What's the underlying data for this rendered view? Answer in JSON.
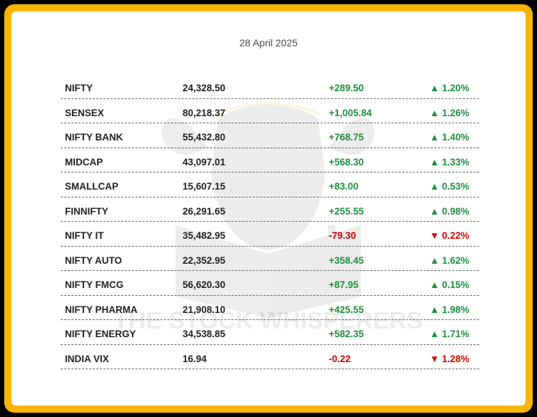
{
  "date": "28 April 2025",
  "watermark_text": "THE STOCK WHISPERERS",
  "colors": {
    "up": "#1e8e3e",
    "down": "#d40000",
    "frame": "#F7B500"
  },
  "rows": [
    {
      "name": "NIFTY",
      "value": "24,328.50",
      "change": "+289.50",
      "pct": "▲ 1.20%",
      "dir": "up"
    },
    {
      "name": "SENSEX",
      "value": "80,218.37",
      "change": "+1,005.84",
      "pct": "▲ 1.26%",
      "dir": "up"
    },
    {
      "name": "NIFTY BANK",
      "value": "55,432.80",
      "change": "+768.75",
      "pct": "▲ 1.40%",
      "dir": "up"
    },
    {
      "name": "MIDCAP",
      "value": "43,097.01",
      "change": "+568.30",
      "pct": "▲ 1.33%",
      "dir": "up"
    },
    {
      "name": "SMALLCAP",
      "value": "15,607.15",
      "change": "+83.00",
      "pct": "▲ 0.53%",
      "dir": "up"
    },
    {
      "name": "FINNIFTY",
      "value": "26,291.65",
      "change": "+255.55",
      "pct": "▲ 0.98%",
      "dir": "up"
    },
    {
      "name": "NIFTY IT",
      "value": "35,482.95",
      "change": "-79.30",
      "pct": "▼ 0.22%",
      "dir": "down"
    },
    {
      "name": "NIFTY AUTO",
      "value": "22,352.95",
      "change": "+358.45",
      "pct": "▲ 1.62%",
      "dir": "up"
    },
    {
      "name": "NIFTY FMCG",
      "value": "56,620.30",
      "change": "+87.95",
      "pct": "▲ 0.15%",
      "dir": "up"
    },
    {
      "name": "NIFTY PHARMA",
      "value": "21,908.10",
      "change": "+425.55",
      "pct": "▲ 1.98%",
      "dir": "up"
    },
    {
      "name": "NIFTY ENERGY",
      "value": "34,538.85",
      "change": "+582.35",
      "pct": "▲ 1.71%",
      "dir": "up"
    },
    {
      "name": "INDIA VIX",
      "value": "16.94",
      "change": "-0.22",
      "pct": "▼ 1.28%",
      "dir": "down"
    }
  ]
}
